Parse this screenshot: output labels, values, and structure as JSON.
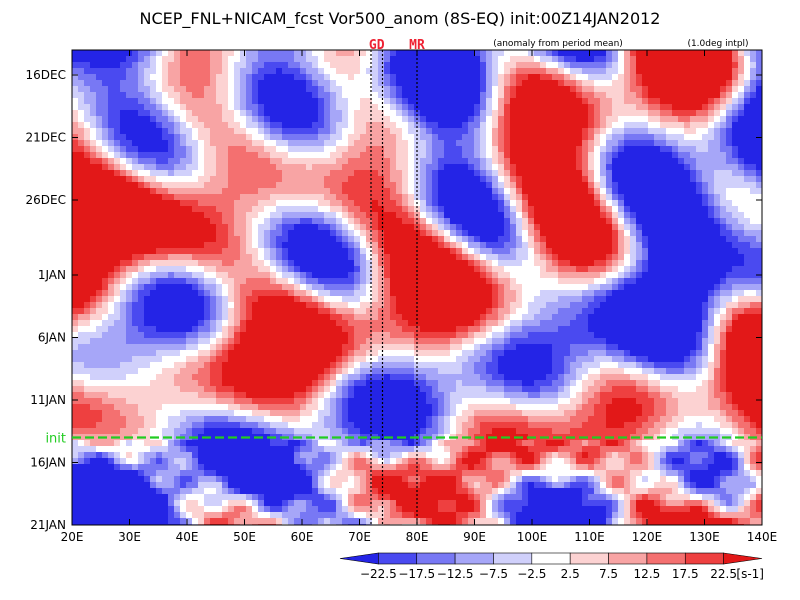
{
  "chart_data": {
    "type": "heatmap",
    "title": "NCEP_FNL+NICAM_fcst Vor500_anom (8S-EQ) init:00Z14JAN2012",
    "notes": [
      "(anomaly from period mean)",
      "(1.0deg intpl)"
    ],
    "x_ticks": [
      "20E",
      "30E",
      "40E",
      "50E",
      "60E",
      "70E",
      "80E",
      "90E",
      "100E",
      "110E",
      "120E",
      "130E",
      "140E"
    ],
    "x_values": [
      20,
      30,
      40,
      50,
      60,
      70,
      80,
      90,
      100,
      110,
      120,
      130,
      140
    ],
    "xlim": [
      20,
      140
    ],
    "y_ticks": [
      "16DEC",
      "21DEC",
      "26DEC",
      "1JAN",
      "6JAN",
      "11JAN",
      "16JAN",
      "21JAN"
    ],
    "y_values": [
      "2011-12-16",
      "2011-12-21",
      "2011-12-26",
      "2012-01-01",
      "2012-01-06",
      "2012-01-11",
      "2012-01-16",
      "2012-01-21"
    ],
    "ylim": [
      "2011-12-14",
      "2012-01-21"
    ],
    "init_label": "init",
    "init_date": "2012-01-14",
    "init_color": "#22cc22",
    "markers": [
      {
        "label": "GD",
        "lons": [
          72,
          74
        ]
      },
      {
        "label": "MR",
        "lons": [
          80
        ]
      }
    ],
    "marker_color": "#e82233",
    "colorbar": {
      "labels": [
        "-22.5",
        "-17.5",
        "-12.5",
        "-7.5",
        "-2.5",
        "2.5",
        "7.5",
        "12.5",
        "17.5",
        "22.5"
      ],
      "unit": "[s-1]",
      "colors": [
        "#2424e6",
        "#4a4af0",
        "#7878f4",
        "#a6a6f8",
        "#d0d0fb",
        "#ffffff",
        "#fcd2d2",
        "#f8a4a4",
        "#f47070",
        "#ee4040",
        "#e21818"
      ]
    }
  }
}
